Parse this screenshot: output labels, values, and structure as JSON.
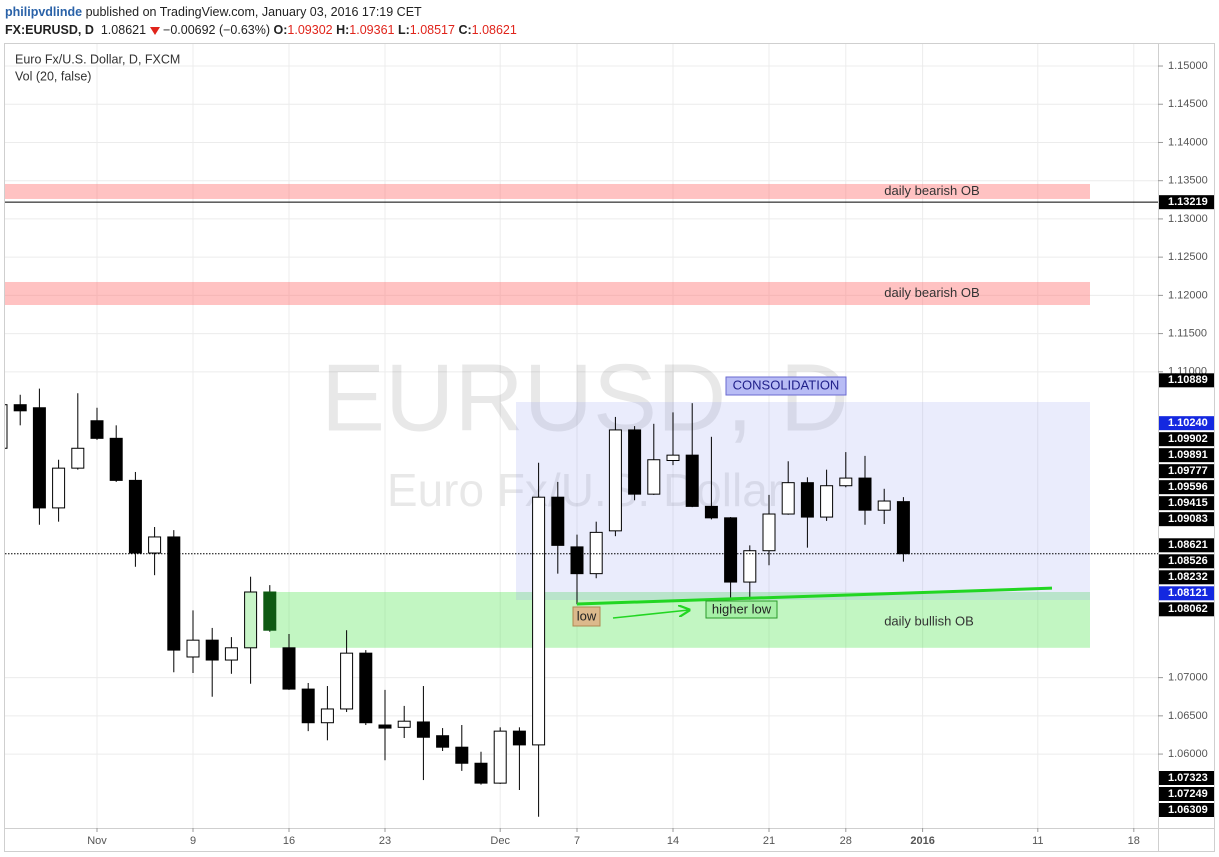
{
  "header": {
    "author": "philipvdlinde",
    "published": "published on TradingView.com, January 03, 2016 17:19 CET",
    "symbol": "FX:EURUSD, D",
    "last": "1.08621",
    "change": "−0.00692 (−0.63%)",
    "ohlc": [
      {
        "label": "O:",
        "value": "1.09302"
      },
      {
        "label": "H:",
        "value": "1.09361"
      },
      {
        "label": "L:",
        "value": "1.08517"
      },
      {
        "label": "C:",
        "value": "1.08621"
      }
    ]
  },
  "chart_data": {
    "type": "candlestick",
    "title": "Euro Fx/U.S. Dollar, D, FXCM",
    "subtitle": "Vol (20, false)",
    "watermark": "EURUSD, D",
    "watermark_sub": "Euro Fx/U.S. Dollar",
    "categories": [
      null,
      null,
      null,
      null,
      null,
      "Nov",
      null,
      null,
      null,
      null,
      "9",
      null,
      null,
      null,
      null,
      "16",
      null,
      null,
      null,
      null,
      "23",
      null,
      null,
      null,
      null,
      null,
      "Dec",
      null,
      null,
      null,
      "7",
      null,
      null,
      null,
      null,
      "14",
      null,
      null,
      null,
      null,
      "21",
      null,
      null,
      null,
      "28",
      null,
      null,
      null,
      "2016",
      null,
      null,
      null,
      null,
      null,
      "11",
      null,
      null,
      null,
      null,
      "18"
    ],
    "open": [
      1.1,
      1.1057,
      1.1053,
      1.0922,
      1.0974,
      1.1036,
      1.1013,
      1.0958,
      1.0863,
      1.0884,
      1.0727,
      1.0749,
      1.0723,
      1.0739,
      1.0812,
      1.0739,
      1.0685,
      1.0641,
      1.0659,
      1.0732,
      1.0638,
      1.0635,
      1.0642,
      1.0624,
      1.0609,
      1.0588,
      1.0562,
      1.063,
      1.0612,
      1.0936,
      1.0871,
      1.0836,
      1.0892,
      1.1024,
      1.094,
      1.0984,
      1.0991,
      1.0924,
      1.0909,
      1.0825,
      1.0866,
      1.0914,
      1.0955,
      1.091,
      1.0951,
      1.0961,
      1.0919,
      1.09302,
      null,
      null,
      null,
      null,
      null,
      null,
      null,
      null,
      null,
      null,
      null,
      null
    ],
    "high": [
      1.106,
      1.107,
      1.1078,
      1.0985,
      1.1072,
      1.1053,
      1.103,
      1.0969,
      1.0897,
      1.0893,
      1.0788,
      1.0765,
      1.0753,
      1.0832,
      1.0821,
      1.0757,
      1.0693,
      1.0689,
      1.0762,
      1.0736,
      1.0684,
      1.0663,
      1.0689,
      1.0634,
      1.0638,
      1.0603,
      1.0635,
      1.0635,
      1.0981,
      1.0956,
      1.0887,
      1.0904,
      1.1041,
      1.1029,
      1.1032,
      1.1047,
      1.1059,
      1.1015,
      1.091,
      1.0873,
      1.0939,
      1.0983,
      1.0962,
      1.0972,
      1.0995,
      1.099,
      1.0947,
      1.09361,
      null,
      null,
      null,
      null,
      null,
      null,
      null,
      null,
      null,
      null,
      null,
      null
    ],
    "low": [
      1.0995,
      1.103,
      1.09,
      1.0904,
      1.0972,
      1.1011,
      1.0956,
      1.0845,
      1.0834,
      1.0707,
      1.0706,
      1.0675,
      1.0705,
      1.0692,
      1.076,
      1.0684,
      1.063,
      1.0618,
      1.0655,
      1.0638,
      1.0592,
      1.0621,
      1.0566,
      1.0604,
      1.0578,
      1.056,
      1.0561,
      1.0553,
      1.0518,
      1.0836,
      1.0796,
      1.083,
      1.0885,
      1.0932,
      1.0939,
      1.0978,
      1.0923,
      1.0907,
      1.0804,
      1.0802,
      1.0847,
      1.0913,
      1.087,
      1.0905,
      1.0949,
      1.09,
      1.0901,
      1.08517,
      null,
      null,
      null,
      null,
      null,
      null,
      null,
      null,
      null,
      null,
      null,
      null
    ],
    "close": [
      1.1057,
      1.1049,
      1.0922,
      1.0974,
      1.1,
      1.1013,
      1.0958,
      1.0863,
      1.0884,
      1.0736,
      1.0749,
      1.0723,
      1.0739,
      1.0812,
      1.0762,
      1.0685,
      1.0641,
      1.0659,
      1.0732,
      1.0641,
      1.0634,
      1.0643,
      1.0622,
      1.0609,
      1.0588,
      1.0562,
      1.063,
      1.0612,
      1.0936,
      1.0873,
      1.0836,
      1.089,
      1.1024,
      1.094,
      1.0985,
      1.0991,
      1.0924,
      1.0909,
      1.0825,
      1.0866,
      1.0914,
      1.0955,
      1.091,
      1.0951,
      1.0961,
      1.0919,
      1.0931,
      1.08621,
      null,
      null,
      null,
      null,
      null,
      null,
      null,
      null,
      null,
      null,
      null,
      null
    ],
    "up_color": "#ffffff",
    "down_color": "#000000",
    "candle_colors": [
      null,
      null,
      null,
      null,
      null,
      null,
      null,
      null,
      null,
      null,
      null,
      null,
      null,
      "#c8f5c8",
      "#0e5a12",
      null,
      null,
      null,
      null,
      null,
      null,
      null,
      null,
      null,
      null,
      null,
      null,
      null,
      null,
      null,
      null,
      null,
      null,
      null,
      null,
      null,
      null,
      null,
      null,
      null,
      null,
      null,
      null,
      null,
      null,
      null,
      null,
      null,
      null,
      null,
      null,
      null,
      null,
      null,
      null,
      null,
      null,
      null,
      null,
      null
    ],
    "ylim": [
      1.05033,
      1.15288
    ],
    "yticks": [
      {
        "value": 1.15,
        "label": "1.15000"
      },
      {
        "value": 1.145,
        "label": "1.14500"
      },
      {
        "value": 1.14,
        "label": "1.14000"
      },
      {
        "value": 1.135,
        "label": "1.13500"
      },
      {
        "value": 1.13,
        "label": "1.13000"
      },
      {
        "value": 1.125,
        "label": "1.12500"
      },
      {
        "value": 1.12,
        "label": "1.12000"
      },
      {
        "value": 1.115,
        "label": "1.11500"
      },
      {
        "value": 1.11,
        "label": "1.11000"
      },
      {
        "value": 1.07,
        "label": "1.07000"
      },
      {
        "value": 1.065,
        "label": "1.06500"
      },
      {
        "value": 1.06,
        "label": "1.06000"
      }
    ],
    "grid": true,
    "zones": [
      {
        "label": "daily bearish OB",
        "top": 1.13457,
        "bottom": 1.13261,
        "color": "rgba(255,120,120,0.45)"
      },
      {
        "label": "daily bearish OB",
        "top": 1.12175,
        "bottom": 1.11874,
        "color": "rgba(255,120,120,0.45)"
      },
      {
        "label": "daily bullish OB",
        "top": 1.0812,
        "bottom": 1.0739,
        "color": "rgba(80,230,80,0.35)"
      },
      {
        "label": "CONSOLIDATION",
        "top": 1.10605,
        "bottom": 1.08015,
        "color": "rgba(150,160,240,0.2)",
        "label_style": "boxed"
      }
    ],
    "hlines": [
      {
        "value": 1.13219,
        "color": "#000000",
        "style": "solid"
      },
      {
        "value": 1.08621,
        "color": "#000000",
        "style": "dotted"
      }
    ],
    "trendline": {
      "values": [
        1.07963,
        1.0817
      ],
      "color": "#22d622"
    },
    "annotations": [
      "low",
      "higher low"
    ],
    "price_markers": [
      {
        "value": 1.13219,
        "label": "1.13219",
        "color": "#000000"
      },
      {
        "value": 1.10889,
        "label": "1.10889",
        "color": "#000000"
      },
      {
        "value": 1.1024,
        "label": "1.10240",
        "color": "#1428e0"
      },
      {
        "value": 1.09902,
        "label": "1.09902",
        "color": "#000000"
      },
      {
        "value": 1.09891,
        "label": "1.09891",
        "color": "#000000"
      },
      {
        "value": 1.09777,
        "label": "1.09777",
        "color": "#000000"
      },
      {
        "value": 1.09596,
        "label": "1.09596",
        "color": "#000000"
      },
      {
        "value": 1.09415,
        "label": "1.09415",
        "color": "#000000"
      },
      {
        "value": 1.09083,
        "label": "1.09083",
        "color": "#000000"
      },
      {
        "value": 1.08621,
        "label": "1.08621",
        "color": "#000000"
      },
      {
        "value": 1.08526,
        "label": "1.08526",
        "color": "#000000"
      },
      {
        "value": 1.08232,
        "label": "1.08232",
        "color": "#000000"
      },
      {
        "value": 1.08121,
        "label": "1.08121",
        "color": "#1428e0"
      },
      {
        "value": 1.08062,
        "label": "1.08062",
        "color": "#000000"
      }
    ],
    "other_markers": [
      {
        "label": "1.07323",
        "color": "#000000"
      },
      {
        "label": "1.07249",
        "color": "#000000"
      },
      {
        "label": "1.06309",
        "color": "#000000"
      }
    ]
  }
}
